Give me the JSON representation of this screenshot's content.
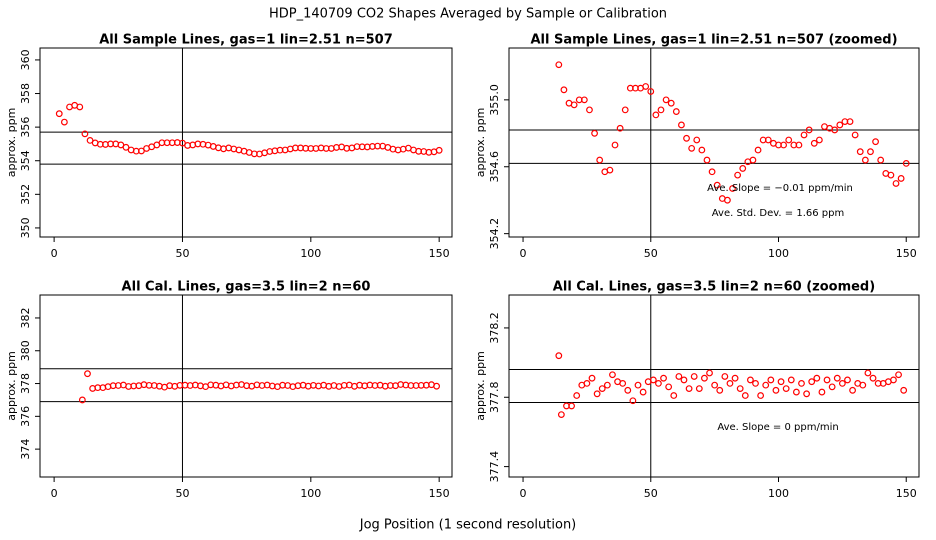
{
  "title": "HDP_140709  CO2 Shapes Averaged by Sample or Calibration",
  "xlabel": "Jog Position (1 second resolution)",
  "chart_data": [
    {
      "type": "scatter",
      "title": "All Sample Lines, gas=1 lin=2.51 n=507",
      "ylabel": "approx. ppm",
      "color": "#ff0000",
      "x": [
        2,
        4,
        6,
        8,
        10,
        12,
        14,
        16,
        18,
        20,
        22,
        24,
        26,
        28,
        30,
        32,
        34,
        36,
        38,
        40,
        42,
        44,
        46,
        48,
        50,
        52,
        54,
        56,
        58,
        60,
        62,
        64,
        66,
        68,
        70,
        72,
        74,
        76,
        78,
        80,
        82,
        84,
        86,
        88,
        90,
        92,
        94,
        96,
        98,
        100,
        102,
        104,
        106,
        108,
        110,
        112,
        114,
        116,
        118,
        120,
        122,
        124,
        126,
        128,
        130,
        132,
        134,
        136,
        138,
        140,
        142,
        144,
        146,
        148,
        150
      ],
      "values": [
        356.8,
        356.3,
        357.2,
        357.3,
        357.2,
        355.6,
        355.21,
        355.06,
        354.98,
        354.97,
        355.0,
        355.0,
        354.94,
        354.8,
        354.64,
        354.57,
        354.58,
        354.73,
        354.83,
        354.94,
        355.07,
        355.07,
        355.07,
        355.08,
        355.05,
        354.91,
        354.94,
        355.0,
        354.98,
        354.93,
        354.85,
        354.77,
        354.71,
        354.76,
        354.7,
        354.64,
        354.57,
        354.49,
        354.41,
        354.4,
        354.47,
        354.55,
        354.59,
        354.63,
        354.64,
        354.7,
        354.76,
        354.76,
        354.74,
        354.73,
        354.73,
        354.76,
        354.73,
        354.73,
        354.79,
        354.82,
        354.74,
        354.76,
        354.84,
        354.83,
        354.82,
        354.85,
        354.87,
        354.87,
        354.79,
        354.69,
        354.64,
        354.69,
        354.75,
        354.64,
        354.56,
        354.55,
        354.5,
        354.53,
        354.62
      ],
      "xlim": [
        -5.5,
        155
      ],
      "ylim": [
        349.46,
        360.71
      ],
      "xticks": [
        0,
        50,
        100,
        150
      ],
      "yticks": [
        350,
        352,
        354,
        356,
        358,
        360
      ],
      "hlines": [
        355.7,
        353.8
      ],
      "vline": 50,
      "annotations": []
    },
    {
      "type": "scatter",
      "title": "All Sample Lines, gas=1 lin=2.51 n=507 (zoomed)",
      "ylabel": "approx. ppm",
      "color": "#ff0000",
      "x": [
        14,
        16,
        18,
        20,
        22,
        24,
        26,
        28,
        30,
        32,
        34,
        36,
        38,
        40,
        42,
        44,
        46,
        48,
        50,
        52,
        54,
        56,
        58,
        60,
        62,
        64,
        66,
        68,
        70,
        72,
        74,
        76,
        78,
        80,
        82,
        84,
        86,
        88,
        90,
        92,
        94,
        96,
        98,
        100,
        102,
        104,
        106,
        108,
        110,
        112,
        114,
        116,
        118,
        120,
        122,
        124,
        126,
        128,
        130,
        132,
        134,
        136,
        138,
        140,
        142,
        144,
        146,
        148,
        150
      ],
      "values": [
        355.21,
        355.06,
        354.98,
        354.97,
        355.0,
        355.0,
        354.94,
        354.8,
        354.64,
        354.57,
        354.58,
        354.73,
        354.83,
        354.94,
        355.07,
        355.07,
        355.07,
        355.08,
        355.05,
        354.91,
        354.94,
        355.0,
        354.98,
        354.93,
        354.85,
        354.77,
        354.71,
        354.76,
        354.7,
        354.64,
        354.57,
        354.49,
        354.41,
        354.4,
        354.47,
        354.55,
        354.59,
        354.63,
        354.64,
        354.7,
        354.76,
        354.76,
        354.74,
        354.73,
        354.73,
        354.76,
        354.73,
        354.73,
        354.79,
        354.82,
        354.74,
        354.76,
        354.84,
        354.83,
        354.82,
        354.85,
        354.87,
        354.87,
        354.79,
        354.69,
        354.64,
        354.69,
        354.75,
        354.64,
        354.56,
        354.55,
        354.5,
        354.53,
        354.62
      ],
      "xlim": [
        -5.5,
        155
      ],
      "ylim": [
        354.18,
        355.31
      ],
      "xticks": [
        0,
        50,
        100,
        150
      ],
      "yticks": [
        {
          "value": 354.2,
          "label": "354.2"
        },
        {
          "value": 354.6,
          "label": "354.6"
        },
        {
          "value": 355.0,
          "label": "355.0"
        }
      ],
      "hlines": [
        354.82,
        354.62
      ],
      "vline": 50,
      "annotations": [
        "Ave. Slope =  −0.01  ppm/min",
        "Ave. Std. Dev. =  1.66  ppm"
      ]
    },
    {
      "type": "scatter",
      "title": "All Cal. Lines, gas=3.5 lin=2 n=60",
      "ylabel": "approx. ppm",
      "color": "#ff0000",
      "x": [
        11,
        13,
        15,
        17,
        19,
        21,
        23,
        25,
        27,
        29,
        31,
        33,
        35,
        37,
        39,
        41,
        43,
        45,
        47,
        49,
        51,
        53,
        55,
        57,
        59,
        61,
        63,
        65,
        67,
        69,
        71,
        73,
        75,
        77,
        79,
        81,
        83,
        85,
        87,
        89,
        91,
        93,
        95,
        97,
        99,
        101,
        103,
        105,
        107,
        109,
        111,
        113,
        115,
        117,
        119,
        121,
        123,
        125,
        127,
        129,
        131,
        133,
        135,
        137,
        139,
        141,
        143,
        145,
        147,
        149
      ],
      "values": [
        377.0,
        378.6,
        377.7,
        377.75,
        377.75,
        377.81,
        377.87,
        377.88,
        377.91,
        377.82,
        377.85,
        377.87,
        377.93,
        377.89,
        377.88,
        377.84,
        377.78,
        377.87,
        377.83,
        377.89,
        377.9,
        377.88,
        377.91,
        377.86,
        377.81,
        377.92,
        377.9,
        377.85,
        377.92,
        377.85,
        377.91,
        377.94,
        377.87,
        377.84,
        377.92,
        377.88,
        377.91,
        377.85,
        377.81,
        377.9,
        377.88,
        377.81,
        377.87,
        377.9,
        377.84,
        377.89,
        377.85,
        377.9,
        377.83,
        377.88,
        377.82,
        377.89,
        377.91,
        377.83,
        377.9,
        377.86,
        377.91,
        377.88,
        377.9,
        377.84,
        377.88,
        377.87,
        377.94,
        377.91,
        377.88,
        377.88,
        377.89,
        377.9,
        377.93,
        377.84
      ],
      "xlim": [
        -5.5,
        155
      ],
      "ylim": [
        372.3,
        383.4
      ],
      "xticks": [
        0,
        50,
        100,
        150
      ],
      "yticks": [
        374,
        376,
        378,
        380,
        382
      ],
      "hlines": [
        378.9,
        376.9
      ],
      "vline": 50,
      "annotations": []
    },
    {
      "type": "scatter",
      "title": "All Cal. Lines, gas=3.5 lin=2 n=60 (zoomed)",
      "ylabel": "approx. ppm",
      "color": "#ff0000",
      "x": [
        14,
        15,
        17,
        19,
        21,
        23,
        25,
        27,
        29,
        31,
        33,
        35,
        37,
        39,
        41,
        43,
        45,
        47,
        49,
        51,
        53,
        55,
        57,
        59,
        61,
        63,
        65,
        67,
        69,
        71,
        73,
        75,
        77,
        79,
        81,
        83,
        85,
        87,
        89,
        91,
        93,
        95,
        97,
        99,
        101,
        103,
        105,
        107,
        109,
        111,
        113,
        115,
        117,
        119,
        121,
        123,
        125,
        127,
        129,
        131,
        133,
        135,
        137,
        139,
        141,
        143,
        145,
        147,
        149
      ],
      "values": [
        378.04,
        377.7,
        377.75,
        377.75,
        377.81,
        377.87,
        377.88,
        377.91,
        377.82,
        377.85,
        377.87,
        377.93,
        377.89,
        377.88,
        377.84,
        377.78,
        377.87,
        377.83,
        377.89,
        377.9,
        377.88,
        377.91,
        377.86,
        377.81,
        377.92,
        377.9,
        377.85,
        377.92,
        377.85,
        377.91,
        377.94,
        377.87,
        377.84,
        377.92,
        377.88,
        377.91,
        377.85,
        377.81,
        377.9,
        377.88,
        377.81,
        377.87,
        377.9,
        377.84,
        377.89,
        377.85,
        377.9,
        377.83,
        377.88,
        377.82,
        377.89,
        377.91,
        377.83,
        377.9,
        377.86,
        377.91,
        377.88,
        377.9,
        377.84,
        377.88,
        377.87,
        377.94,
        377.91,
        377.88,
        377.88,
        377.89,
        377.9,
        377.93,
        377.84
      ],
      "xlim": [
        -5.5,
        155
      ],
      "ylim": [
        377.34,
        378.39
      ],
      "xticks": [
        0,
        50,
        100,
        150
      ],
      "yticks": [
        {
          "value": 377.4,
          "label": "377.4"
        },
        {
          "value": 377.8,
          "label": "377.8"
        },
        {
          "value": 378.2,
          "label": "378.2"
        }
      ],
      "hlines": [
        377.96,
        377.77
      ],
      "vline": 50,
      "annotations": [
        "Ave. Slope =  0  ppm/min"
      ]
    }
  ]
}
